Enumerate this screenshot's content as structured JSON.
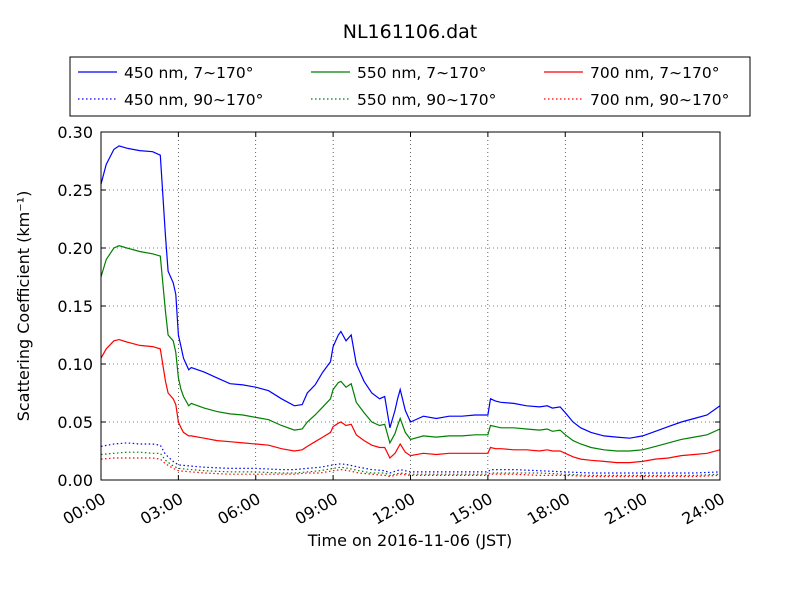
{
  "chart_data": {
    "type": "line",
    "title": "NL161106.dat",
    "xlabel": "Time on 2016-11-06 (JST)",
    "ylabel": "Scattering Coefficient (km⁻¹)",
    "xlim": [
      0,
      24
    ],
    "ylim": [
      0.0,
      0.3
    ],
    "xticks": [
      0,
      3,
      6,
      9,
      12,
      15,
      18,
      21,
      24
    ],
    "xtick_labels": [
      "00:00",
      "03:00",
      "06:00",
      "09:00",
      "12:00",
      "15:00",
      "18:00",
      "21:00",
      "24:00"
    ],
    "yticks": [
      0.0,
      0.05,
      0.1,
      0.15,
      0.2,
      0.25,
      0.3
    ],
    "ytick_labels": [
      "0.00",
      "0.05",
      "0.10",
      "0.15",
      "0.20",
      "0.25",
      "0.30"
    ],
    "grid": true,
    "legend_position": "top-center",
    "x_unit": "hours",
    "series": [
      {
        "name": "450 nm, 7∼170°",
        "color": "#0000ff",
        "style": "solid",
        "x": [
          0,
          0.2,
          0.5,
          0.7,
          1.0,
          1.5,
          2.0,
          2.3,
          2.5,
          2.6,
          2.8,
          2.9,
          3.0,
          3.1,
          3.2,
          3.4,
          3.5,
          4.0,
          4.5,
          5.0,
          5.5,
          6.0,
          6.5,
          7.0,
          7.5,
          7.8,
          8.0,
          8.3,
          8.6,
          8.9,
          9.0,
          9.2,
          9.3,
          9.5,
          9.7,
          9.9,
          10.2,
          10.5,
          10.8,
          11.0,
          11.2,
          11.4,
          11.5,
          11.6,
          11.8,
          12.0,
          12.5,
          13.0,
          13.5,
          14.0,
          14.5,
          15.0,
          15.1,
          15.3,
          15.5,
          16.0,
          16.5,
          17.0,
          17.3,
          17.5,
          17.8,
          18.0,
          18.3,
          18.6,
          19.0,
          19.5,
          20.0,
          20.5,
          21.0,
          21.5,
          22.0,
          22.5,
          23.0,
          23.5,
          24.0
        ],
        "values": [
          0.255,
          0.272,
          0.285,
          0.288,
          0.286,
          0.284,
          0.283,
          0.28,
          0.21,
          0.18,
          0.17,
          0.16,
          0.125,
          0.115,
          0.105,
          0.095,
          0.097,
          0.093,
          0.088,
          0.083,
          0.082,
          0.08,
          0.077,
          0.07,
          0.064,
          0.065,
          0.075,
          0.082,
          0.093,
          0.102,
          0.115,
          0.125,
          0.128,
          0.12,
          0.125,
          0.1,
          0.085,
          0.075,
          0.07,
          0.072,
          0.045,
          0.06,
          0.07,
          0.078,
          0.06,
          0.05,
          0.055,
          0.053,
          0.055,
          0.055,
          0.056,
          0.056,
          0.07,
          0.068,
          0.067,
          0.066,
          0.064,
          0.063,
          0.064,
          0.062,
          0.063,
          0.058,
          0.05,
          0.045,
          0.041,
          0.038,
          0.037,
          0.036,
          0.038,
          0.042,
          0.046,
          0.05,
          0.053,
          0.056,
          0.064
        ]
      },
      {
        "name": "550 nm, 7∼170°",
        "color": "#008000",
        "style": "solid",
        "x": [
          0,
          0.2,
          0.5,
          0.7,
          1.0,
          1.5,
          2.0,
          2.3,
          2.5,
          2.6,
          2.8,
          2.9,
          3.0,
          3.1,
          3.2,
          3.4,
          3.5,
          4.0,
          4.5,
          5.0,
          5.5,
          6.0,
          6.5,
          7.0,
          7.5,
          7.8,
          8.0,
          8.3,
          8.6,
          8.9,
          9.0,
          9.2,
          9.3,
          9.5,
          9.7,
          9.9,
          10.2,
          10.5,
          10.8,
          11.0,
          11.2,
          11.4,
          11.5,
          11.6,
          11.8,
          12.0,
          12.5,
          13.0,
          13.5,
          14.0,
          14.5,
          15.0,
          15.1,
          15.3,
          15.5,
          16.0,
          16.5,
          17.0,
          17.3,
          17.5,
          17.8,
          18.0,
          18.3,
          18.6,
          19.0,
          19.5,
          20.0,
          20.5,
          21.0,
          21.5,
          22.0,
          22.5,
          23.0,
          23.5,
          24.0
        ],
        "values": [
          0.175,
          0.19,
          0.2,
          0.202,
          0.2,
          0.197,
          0.195,
          0.193,
          0.145,
          0.125,
          0.12,
          0.11,
          0.088,
          0.078,
          0.072,
          0.064,
          0.066,
          0.062,
          0.059,
          0.057,
          0.056,
          0.054,
          0.052,
          0.047,
          0.043,
          0.044,
          0.05,
          0.056,
          0.063,
          0.07,
          0.078,
          0.084,
          0.085,
          0.08,
          0.083,
          0.067,
          0.058,
          0.05,
          0.047,
          0.048,
          0.032,
          0.04,
          0.047,
          0.053,
          0.041,
          0.035,
          0.038,
          0.037,
          0.038,
          0.038,
          0.039,
          0.039,
          0.047,
          0.046,
          0.045,
          0.045,
          0.044,
          0.043,
          0.044,
          0.042,
          0.043,
          0.039,
          0.034,
          0.031,
          0.028,
          0.026,
          0.025,
          0.025,
          0.026,
          0.029,
          0.032,
          0.035,
          0.037,
          0.039,
          0.044
        ]
      },
      {
        "name": "700 nm, 7∼170°",
        "color": "#ff0000",
        "style": "solid",
        "x": [
          0,
          0.2,
          0.5,
          0.7,
          1.0,
          1.5,
          2.0,
          2.3,
          2.5,
          2.6,
          2.8,
          2.9,
          3.0,
          3.1,
          3.2,
          3.4,
          3.5,
          4.0,
          4.5,
          5.0,
          5.5,
          6.0,
          6.5,
          7.0,
          7.5,
          7.8,
          8.0,
          8.3,
          8.6,
          8.9,
          9.0,
          9.2,
          9.3,
          9.5,
          9.7,
          9.9,
          10.2,
          10.5,
          10.8,
          11.0,
          11.2,
          11.4,
          11.5,
          11.6,
          11.8,
          12.0,
          12.5,
          13.0,
          13.5,
          14.0,
          14.5,
          15.0,
          15.1,
          15.3,
          15.5,
          16.0,
          16.5,
          17.0,
          17.3,
          17.5,
          17.8,
          18.0,
          18.3,
          18.6,
          19.0,
          19.5,
          20.0,
          20.5,
          21.0,
          21.5,
          22.0,
          22.5,
          23.0,
          23.5,
          24.0
        ],
        "values": [
          0.105,
          0.113,
          0.12,
          0.121,
          0.119,
          0.116,
          0.115,
          0.113,
          0.085,
          0.075,
          0.07,
          0.065,
          0.05,
          0.045,
          0.041,
          0.038,
          0.038,
          0.036,
          0.034,
          0.033,
          0.032,
          0.031,
          0.03,
          0.027,
          0.025,
          0.026,
          0.029,
          0.033,
          0.037,
          0.041,
          0.046,
          0.049,
          0.05,
          0.047,
          0.048,
          0.039,
          0.034,
          0.03,
          0.028,
          0.028,
          0.019,
          0.023,
          0.027,
          0.031,
          0.024,
          0.021,
          0.023,
          0.022,
          0.023,
          0.023,
          0.023,
          0.023,
          0.028,
          0.027,
          0.027,
          0.026,
          0.026,
          0.025,
          0.026,
          0.025,
          0.025,
          0.023,
          0.02,
          0.018,
          0.017,
          0.016,
          0.015,
          0.015,
          0.016,
          0.018,
          0.019,
          0.021,
          0.022,
          0.023,
          0.026
        ]
      },
      {
        "name": "450 nm, 90∼170°",
        "color": "#0000ff",
        "style": "dotted",
        "x": [
          0,
          0.5,
          1.0,
          1.5,
          2.0,
          2.3,
          2.5,
          2.8,
          3.0,
          3.5,
          4.0,
          5.0,
          6.0,
          7.0,
          7.5,
          8.0,
          8.5,
          9.0,
          9.3,
          9.6,
          10.0,
          10.5,
          11.0,
          11.2,
          11.6,
          12.0,
          13.0,
          14.0,
          15.0,
          15.1,
          16.0,
          17.0,
          18.0,
          19.0,
          20.0,
          21.0,
          22.0,
          23.0,
          24.0
        ],
        "values": [
          0.029,
          0.031,
          0.032,
          0.031,
          0.031,
          0.03,
          0.022,
          0.016,
          0.013,
          0.012,
          0.011,
          0.01,
          0.01,
          0.009,
          0.009,
          0.01,
          0.011,
          0.013,
          0.014,
          0.013,
          0.011,
          0.009,
          0.008,
          0.006,
          0.009,
          0.007,
          0.007,
          0.007,
          0.007,
          0.009,
          0.009,
          0.008,
          0.007,
          0.006,
          0.006,
          0.006,
          0.006,
          0.006,
          0.007
        ]
      },
      {
        "name": "550 nm, 90∼170°",
        "color": "#008000",
        "style": "dotted",
        "x": [
          0,
          0.5,
          1.0,
          1.5,
          2.0,
          2.3,
          2.5,
          2.8,
          3.0,
          3.5,
          4.0,
          5.0,
          6.0,
          7.0,
          7.5,
          8.0,
          8.5,
          9.0,
          9.3,
          9.6,
          10.0,
          10.5,
          11.0,
          11.2,
          11.6,
          12.0,
          13.0,
          14.0,
          15.0,
          15.1,
          16.0,
          17.0,
          18.0,
          19.0,
          20.0,
          21.0,
          22.0,
          23.0,
          24.0
        ],
        "values": [
          0.022,
          0.023,
          0.024,
          0.024,
          0.023,
          0.023,
          0.017,
          0.012,
          0.01,
          0.009,
          0.008,
          0.007,
          0.007,
          0.006,
          0.006,
          0.007,
          0.008,
          0.01,
          0.011,
          0.01,
          0.008,
          0.006,
          0.006,
          0.004,
          0.006,
          0.005,
          0.005,
          0.005,
          0.005,
          0.006,
          0.006,
          0.006,
          0.005,
          0.004,
          0.004,
          0.004,
          0.004,
          0.004,
          0.005
        ]
      },
      {
        "name": "700 nm, 90∼170°",
        "color": "#ff0000",
        "style": "dotted",
        "x": [
          0,
          0.5,
          1.0,
          1.5,
          2.0,
          2.3,
          2.5,
          2.8,
          3.0,
          3.5,
          4.0,
          5.0,
          6.0,
          7.0,
          7.5,
          8.0,
          8.5,
          9.0,
          9.3,
          9.6,
          10.0,
          10.5,
          11.0,
          11.2,
          11.6,
          12.0,
          13.0,
          14.0,
          15.0,
          15.1,
          16.0,
          17.0,
          18.0,
          19.0,
          20.0,
          21.0,
          22.0,
          23.0,
          24.0
        ],
        "values": [
          0.018,
          0.019,
          0.019,
          0.019,
          0.019,
          0.018,
          0.014,
          0.01,
          0.008,
          0.007,
          0.006,
          0.005,
          0.005,
          0.005,
          0.005,
          0.006,
          0.006,
          0.008,
          0.009,
          0.008,
          0.006,
          0.005,
          0.004,
          0.003,
          0.005,
          0.004,
          0.004,
          0.004,
          0.004,
          0.005,
          0.005,
          0.004,
          0.004,
          0.003,
          0.003,
          0.003,
          0.003,
          0.003,
          0.004
        ]
      }
    ],
    "legend_order": [
      0,
      1,
      2,
      3,
      4,
      5
    ]
  }
}
